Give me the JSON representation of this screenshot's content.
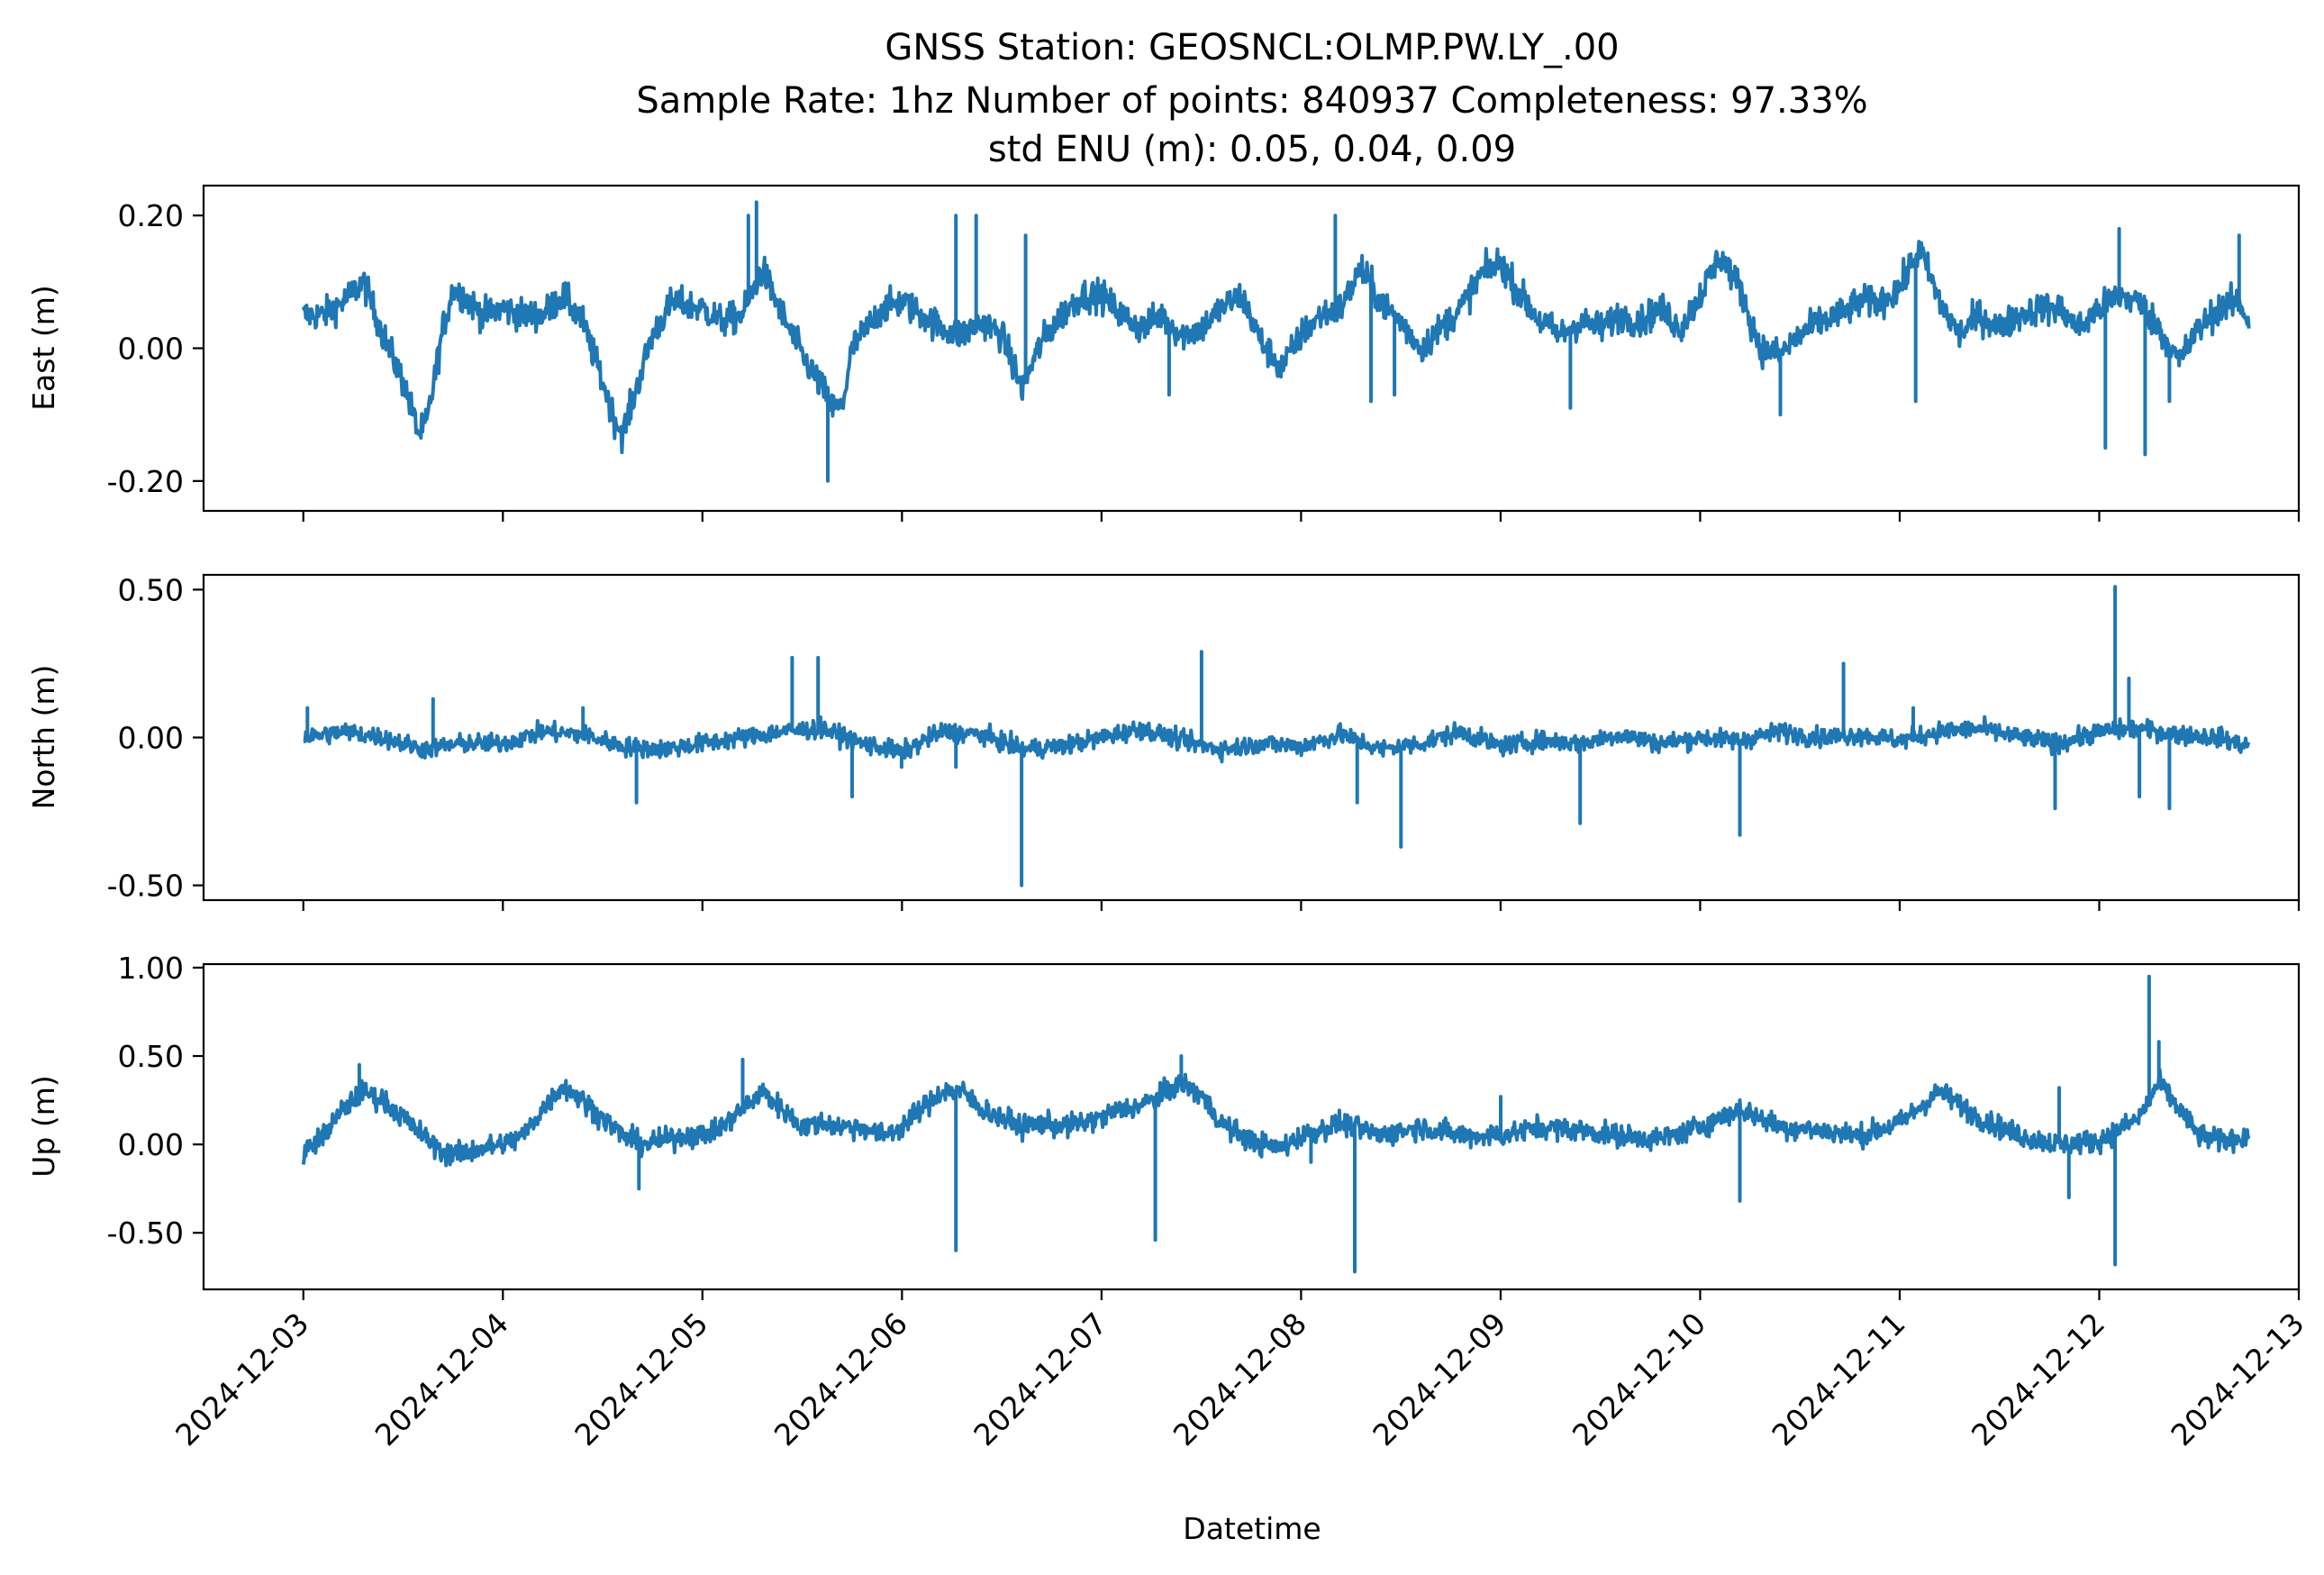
{
  "chart_data": {
    "type": "line",
    "title_lines": [
      "GNSS Station: GEOSNCL:OLMP.PW.LY_.00",
      "Sample Rate: 1hz   Number of points: 840937    Completeness:  97.33%",
      "std ENU (m):  0.05, 0.04, 0.09"
    ],
    "xlabel": "Datetime",
    "x_start": "2024-12-03T00:00",
    "x_end": "2024-12-12T18:00",
    "xlim": [
      "2024-12-02T12:00",
      "2024-12-13T00:00"
    ],
    "x_ticks": [
      "2024-12-03",
      "2024-12-04",
      "2024-12-05",
      "2024-12-06",
      "2024-12-07",
      "2024-12-08",
      "2024-12-09",
      "2024-12-10",
      "2024-12-11",
      "2024-12-12",
      "2024-12-13"
    ],
    "color": "#1f77b4",
    "panels": [
      {
        "name": "east",
        "ylabel": "East (m)",
        "ylim": [
          -0.245,
          0.245
        ],
        "yticks": [
          0.2,
          0.0,
          -0.2
        ],
        "ytick_labels": [
          "0.20",
          "0.00",
          "-0.20"
        ],
        "knots": [
          [
            0.0,
            0.05
          ],
          [
            0.1,
            0.05
          ],
          [
            0.2,
            0.07
          ],
          [
            0.3,
            0.1
          ],
          [
            0.4,
            0.02
          ],
          [
            0.5,
            -0.05
          ],
          [
            0.55,
            -0.1
          ],
          [
            0.58,
            -0.13
          ],
          [
            0.62,
            -0.11
          ],
          [
            0.7,
            0.03
          ],
          [
            0.75,
            0.09
          ],
          [
            0.8,
            0.08
          ],
          [
            0.9,
            0.05
          ],
          [
            1.0,
            0.06
          ],
          [
            1.1,
            0.05
          ],
          [
            1.2,
            0.05
          ],
          [
            1.3,
            0.08
          ],
          [
            1.4,
            0.04
          ],
          [
            1.5,
            -0.05
          ],
          [
            1.55,
            -0.1
          ],
          [
            1.6,
            -0.13
          ],
          [
            1.65,
            -0.08
          ],
          [
            1.75,
            0.02
          ],
          [
            1.85,
            0.07
          ],
          [
            2.0,
            0.06
          ],
          [
            2.1,
            0.04
          ],
          [
            2.2,
            0.05
          ],
          [
            2.3,
            0.12
          ],
          [
            2.4,
            0.05
          ],
          [
            2.5,
            -0.01
          ],
          [
            2.6,
            -0.06
          ],
          [
            2.65,
            -0.09
          ],
          [
            2.7,
            -0.09
          ],
          [
            2.75,
            0.0
          ],
          [
            2.9,
            0.06
          ],
          [
            3.0,
            0.07
          ],
          [
            3.1,
            0.05
          ],
          [
            3.2,
            0.03
          ],
          [
            3.3,
            0.02
          ],
          [
            3.4,
            0.04
          ],
          [
            3.5,
            0.02
          ],
          [
            3.6,
            -0.06
          ],
          [
            3.7,
            0.01
          ],
          [
            3.8,
            0.05
          ],
          [
            3.9,
            0.08
          ],
          [
            4.0,
            0.08
          ],
          [
            4.1,
            0.05
          ],
          [
            4.2,
            0.03
          ],
          [
            4.3,
            0.05
          ],
          [
            4.4,
            0.02
          ],
          [
            4.5,
            0.03
          ],
          [
            4.6,
            0.06
          ],
          [
            4.7,
            0.08
          ],
          [
            4.8,
            0.01
          ],
          [
            4.9,
            -0.03
          ],
          [
            5.0,
            0.02
          ],
          [
            5.1,
            0.05
          ],
          [
            5.2,
            0.06
          ],
          [
            5.3,
            0.12
          ],
          [
            5.4,
            0.07
          ],
          [
            5.5,
            0.04
          ],
          [
            5.6,
            0.0
          ],
          [
            5.7,
            0.03
          ],
          [
            5.8,
            0.06
          ],
          [
            5.9,
            0.11
          ],
          [
            6.0,
            0.13
          ],
          [
            6.1,
            0.08
          ],
          [
            6.2,
            0.04
          ],
          [
            6.3,
            0.02
          ],
          [
            6.4,
            0.04
          ],
          [
            6.5,
            0.03
          ],
          [
            6.6,
            0.05
          ],
          [
            6.7,
            0.04
          ],
          [
            6.8,
            0.06
          ],
          [
            6.9,
            0.03
          ],
          [
            7.0,
            0.08
          ],
          [
            7.1,
            0.14
          ],
          [
            7.2,
            0.09
          ],
          [
            7.3,
            0.0
          ],
          [
            7.4,
            -0.01
          ],
          [
            7.5,
            0.02
          ],
          [
            7.6,
            0.04
          ],
          [
            7.7,
            0.05
          ],
          [
            7.8,
            0.07
          ],
          [
            7.9,
            0.07
          ],
          [
            8.0,
            0.09
          ],
          [
            8.1,
            0.15
          ],
          [
            8.2,
            0.07
          ],
          [
            8.3,
            0.02
          ],
          [
            8.4,
            0.05
          ],
          [
            8.5,
            0.03
          ],
          [
            8.6,
            0.05
          ],
          [
            8.7,
            0.06
          ],
          [
            8.8,
            0.06
          ],
          [
            8.9,
            0.03
          ],
          [
            9.0,
            0.06
          ],
          [
            9.1,
            0.08
          ],
          [
            9.2,
            0.07
          ],
          [
            9.3,
            0.03
          ],
          [
            9.4,
            -0.02
          ],
          [
            9.5,
            0.03
          ],
          [
            9.6,
            0.06
          ],
          [
            9.7,
            0.07
          ],
          [
            9.75,
            0.04
          ]
        ],
        "spikes": [
          [
            2.23,
            0.2
          ],
          [
            2.27,
            0.22
          ],
          [
            2.63,
            -0.2
          ],
          [
            3.27,
            0.2
          ],
          [
            3.37,
            0.2
          ],
          [
            3.62,
            0.17
          ],
          [
            4.34,
            -0.07
          ],
          [
            5.17,
            0.2
          ],
          [
            5.35,
            -0.08
          ],
          [
            5.47,
            -0.07
          ],
          [
            6.35,
            -0.09
          ],
          [
            7.4,
            -0.1
          ],
          [
            7.85,
            0.05
          ],
          [
            8.08,
            -0.08
          ],
          [
            9.03,
            -0.15
          ],
          [
            9.1,
            0.18
          ],
          [
            9.23,
            -0.16
          ],
          [
            9.35,
            -0.08
          ],
          [
            9.7,
            0.17
          ]
        ]
      },
      {
        "name": "north",
        "ylabel": "North (m)",
        "ylim": [
          -0.55,
          0.55
        ],
        "yticks": [
          0.5,
          0.0,
          -0.5
        ],
        "ytick_labels": [
          "0.50",
          "0.00",
          "-0.50"
        ],
        "knots": [
          [
            0.0,
            0.0
          ],
          [
            0.2,
            0.02
          ],
          [
            0.4,
            0.0
          ],
          [
            0.6,
            -0.04
          ],
          [
            0.8,
            -0.02
          ],
          [
            1.0,
            -0.02
          ],
          [
            1.2,
            0.02
          ],
          [
            1.4,
            0.01
          ],
          [
            1.6,
            -0.03
          ],
          [
            1.8,
            -0.04
          ],
          [
            2.0,
            -0.02
          ],
          [
            2.2,
            0.0
          ],
          [
            2.4,
            0.02
          ],
          [
            2.6,
            0.03
          ],
          [
            2.8,
            -0.02
          ],
          [
            3.0,
            -0.05
          ],
          [
            3.2,
            0.02
          ],
          [
            3.4,
            0.01
          ],
          [
            3.6,
            -0.04
          ],
          [
            3.8,
            -0.03
          ],
          [
            4.0,
            0.0
          ],
          [
            4.2,
            0.03
          ],
          [
            4.4,
            -0.01
          ],
          [
            4.6,
            -0.04
          ],
          [
            4.8,
            -0.02
          ],
          [
            5.0,
            -0.03
          ],
          [
            5.2,
            0.01
          ],
          [
            5.4,
            -0.04
          ],
          [
            5.6,
            -0.02
          ],
          [
            5.8,
            0.02
          ],
          [
            6.0,
            -0.03
          ],
          [
            6.2,
            -0.01
          ],
          [
            6.4,
            -0.02
          ],
          [
            6.6,
            0.01
          ],
          [
            6.8,
            -0.02
          ],
          [
            7.0,
            0.0
          ],
          [
            7.2,
            -0.01
          ],
          [
            7.4,
            0.02
          ],
          [
            7.6,
            0.0
          ],
          [
            7.8,
            0.01
          ],
          [
            8.0,
            -0.01
          ],
          [
            8.2,
            0.02
          ],
          [
            8.4,
            0.03
          ],
          [
            8.6,
            0.0
          ],
          [
            8.8,
            -0.02
          ],
          [
            9.0,
            0.02
          ],
          [
            9.2,
            0.03
          ],
          [
            9.4,
            0.01
          ],
          [
            9.6,
            0.0
          ],
          [
            9.75,
            -0.03
          ]
        ],
        "spikes": [
          [
            0.02,
            0.1
          ],
          [
            0.65,
            0.13
          ],
          [
            1.4,
            0.1
          ],
          [
            1.67,
            -0.22
          ],
          [
            2.45,
            0.27
          ],
          [
            2.58,
            0.27
          ],
          [
            2.75,
            -0.2
          ],
          [
            3.0,
            -0.1
          ],
          [
            3.27,
            -0.1
          ],
          [
            3.6,
            -0.5
          ],
          [
            4.5,
            0.29
          ],
          [
            5.28,
            -0.22
          ],
          [
            5.5,
            -0.37
          ],
          [
            6.4,
            -0.29
          ],
          [
            7.2,
            -0.33
          ],
          [
            7.72,
            0.25
          ],
          [
            8.07,
            0.1
          ],
          [
            8.78,
            -0.24
          ],
          [
            9.08,
            0.51
          ],
          [
            9.15,
            0.2
          ],
          [
            9.2,
            -0.2
          ],
          [
            9.35,
            -0.24
          ]
        ]
      },
      {
        "name": "up",
        "ylabel": "Up (m)",
        "ylim": [
          -0.82,
          1.02
        ],
        "yticks": [
          1.0,
          0.5,
          0.0,
          -0.5
        ],
        "ytick_labels": [
          "1.00",
          "0.50",
          "0.00",
          "-0.50"
        ],
        "knots": [
          [
            0.0,
            -0.05
          ],
          [
            0.1,
            0.05
          ],
          [
            0.2,
            0.2
          ],
          [
            0.3,
            0.3
          ],
          [
            0.4,
            0.25
          ],
          [
            0.5,
            0.15
          ],
          [
            0.6,
            0.05
          ],
          [
            0.7,
            -0.05
          ],
          [
            0.8,
            -0.05
          ],
          [
            0.9,
            -0.02
          ],
          [
            1.0,
            0.0
          ],
          [
            1.1,
            0.05
          ],
          [
            1.2,
            0.2
          ],
          [
            1.3,
            0.33
          ],
          [
            1.4,
            0.25
          ],
          [
            1.5,
            0.15
          ],
          [
            1.6,
            0.05
          ],
          [
            1.7,
            0.0
          ],
          [
            1.8,
            0.02
          ],
          [
            1.9,
            0.05
          ],
          [
            2.0,
            0.05
          ],
          [
            2.1,
            0.1
          ],
          [
            2.2,
            0.2
          ],
          [
            2.3,
            0.3
          ],
          [
            2.4,
            0.2
          ],
          [
            2.5,
            0.1
          ],
          [
            2.6,
            0.12
          ],
          [
            2.7,
            0.1
          ],
          [
            2.8,
            0.1
          ],
          [
            2.9,
            0.05
          ],
          [
            3.0,
            0.1
          ],
          [
            3.1,
            0.2
          ],
          [
            3.2,
            0.3
          ],
          [
            3.3,
            0.3
          ],
          [
            3.4,
            0.2
          ],
          [
            3.5,
            0.15
          ],
          [
            3.6,
            0.1
          ],
          [
            3.7,
            0.12
          ],
          [
            3.8,
            0.1
          ],
          [
            3.9,
            0.12
          ],
          [
            4.0,
            0.15
          ],
          [
            4.1,
            0.2
          ],
          [
            4.2,
            0.22
          ],
          [
            4.3,
            0.28
          ],
          [
            4.4,
            0.35
          ],
          [
            4.5,
            0.28
          ],
          [
            4.6,
            0.12
          ],
          [
            4.7,
            0.05
          ],
          [
            4.8,
            0.0
          ],
          [
            4.9,
            -0.02
          ],
          [
            5.0,
            0.05
          ],
          [
            5.2,
            0.12
          ],
          [
            5.4,
            0.05
          ],
          [
            5.6,
            0.1
          ],
          [
            5.8,
            0.05
          ],
          [
            6.0,
            0.05
          ],
          [
            6.2,
            0.1
          ],
          [
            6.4,
            0.08
          ],
          [
            6.6,
            0.05
          ],
          [
            6.8,
            0.03
          ],
          [
            7.0,
            0.1
          ],
          [
            7.2,
            0.2
          ],
          [
            7.4,
            0.1
          ],
          [
            7.6,
            0.08
          ],
          [
            7.8,
            0.05
          ],
          [
            8.0,
            0.12
          ],
          [
            8.2,
            0.3
          ],
          [
            8.4,
            0.15
          ],
          [
            8.6,
            0.05
          ],
          [
            8.8,
            0.0
          ],
          [
            9.0,
            0.02
          ],
          [
            9.2,
            0.15
          ],
          [
            9.3,
            0.35
          ],
          [
            9.4,
            0.2
          ],
          [
            9.5,
            0.05
          ],
          [
            9.6,
            0.02
          ],
          [
            9.75,
            0.05
          ]
        ],
        "spikes": [
          [
            0.28,
            0.45
          ],
          [
            1.68,
            -0.25
          ],
          [
            2.2,
            0.48
          ],
          [
            3.27,
            -0.6
          ],
          [
            4.27,
            -0.54
          ],
          [
            4.4,
            0.5
          ],
          [
            5.05,
            -0.1
          ],
          [
            5.27,
            -0.72
          ],
          [
            6.0,
            0.27
          ],
          [
            7.2,
            -0.32
          ],
          [
            8.8,
            0.32
          ],
          [
            8.85,
            -0.3
          ],
          [
            9.08,
            -0.68
          ],
          [
            9.25,
            0.95
          ],
          [
            9.3,
            0.58
          ]
        ]
      }
    ]
  }
}
